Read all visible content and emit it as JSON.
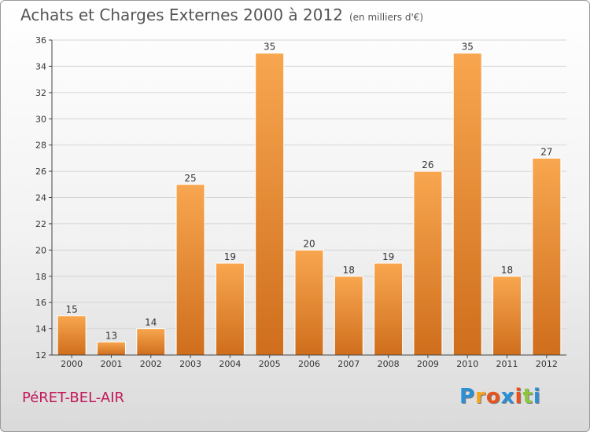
{
  "header": {
    "title": "Achats et Charges Externes 2000 à 2012",
    "subtitle": "(en milliers d'€)"
  },
  "footer": {
    "commune": "PéRET-BEL-AIR",
    "logo_letters": [
      "P",
      "r",
      "o",
      "x",
      "i",
      "t",
      "i"
    ],
    "logo_colors": [
      "#2b8fd6",
      "#f7a21b",
      "#e8531c",
      "#2b8fd6",
      "#e8531c",
      "#8cc63f",
      "#2b8fd6"
    ]
  },
  "colors": {
    "bar_top": "#f8a64f",
    "bar_bottom": "#cf6e1c",
    "bar_edge": "#ffffff",
    "grid": "#d5d5d5",
    "axis": "#444444",
    "label": "#333333"
  },
  "chart_data": {
    "type": "bar",
    "title": "Achats et Charges Externes 2000 à 2012",
    "subtitle": "(en milliers d'€)",
    "categories": [
      "2000",
      "2001",
      "2002",
      "2003",
      "2004",
      "2005",
      "2006",
      "2007",
      "2008",
      "2009",
      "2010",
      "2011",
      "2012"
    ],
    "values": [
      15,
      13,
      14,
      25,
      19,
      35,
      20,
      18,
      19,
      26,
      35,
      18,
      27
    ],
    "ylim": [
      12,
      36
    ],
    "yticks": [
      12,
      14,
      16,
      18,
      20,
      22,
      24,
      26,
      28,
      30,
      32,
      34,
      36
    ],
    "grid": true,
    "data_labels": true
  }
}
